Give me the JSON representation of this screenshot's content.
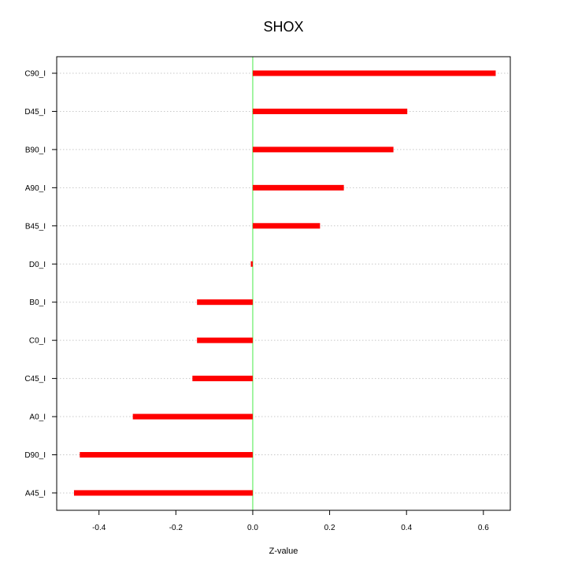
{
  "chart_data": {
    "type": "bar",
    "orientation": "horizontal",
    "title": "SHOX",
    "xlabel": "Z-value",
    "ylabel": "",
    "xlim": [
      -0.51,
      0.67
    ],
    "xticks": [
      -0.4,
      -0.2,
      0.0,
      0.2,
      0.4,
      0.6
    ],
    "xtick_labels": [
      "-0.4",
      "-0.2",
      "0.0",
      "0.2",
      "0.4",
      "0.6"
    ],
    "grid": "horizontal dotted lines at each category",
    "legend": "none",
    "categories": [
      "C90_I",
      "D45_I",
      "B90_I",
      "A90_I",
      "B45_I",
      "D0_I",
      "B0_I",
      "C0_I",
      "C45_I",
      "A0_I",
      "D90_I",
      "A45_I"
    ],
    "values": [
      0.632,
      0.402,
      0.366,
      0.237,
      0.175,
      -0.005,
      -0.145,
      -0.145,
      -0.157,
      -0.312,
      -0.45,
      -0.465
    ],
    "colors": {
      "bar": "#ff0000",
      "zero_line": "#66ee66",
      "grid": "#c8c8c8",
      "axis": "#000000"
    }
  }
}
